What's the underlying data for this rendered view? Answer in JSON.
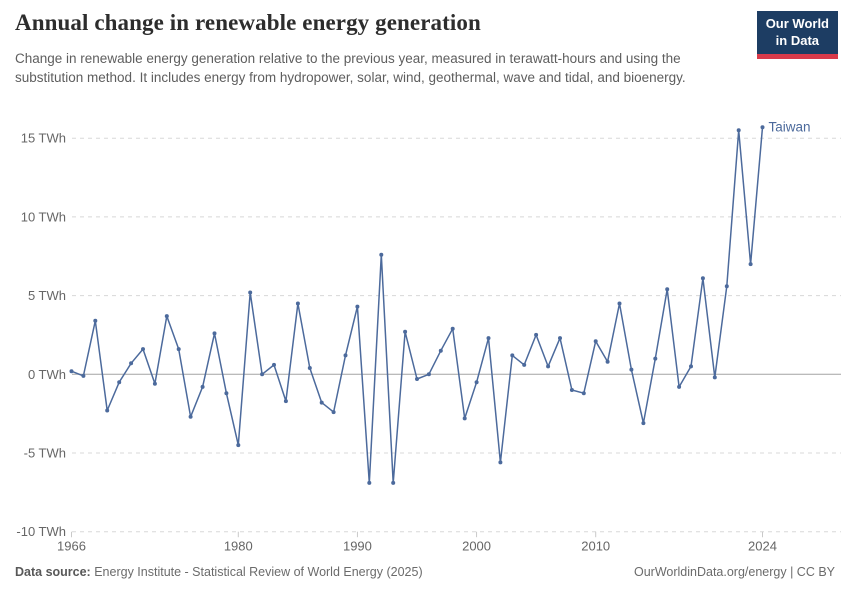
{
  "header": {
    "title": "Annual change in renewable energy generation",
    "subtitle": "Change in renewable energy generation relative to the previous year, measured in terawatt-hours and using the substitution method. It includes energy from hydropower, solar, wind, geothermal, wave and tidal, and bioenergy.",
    "logo": {
      "line1": "Our World",
      "line2": "in Data",
      "bg_color": "#1d3d63",
      "strip_color": "#d93a4a"
    }
  },
  "chart_data": {
    "type": "line",
    "entity_label": "Taiwan",
    "unit": "TWh",
    "line_color": "#4c6a9c",
    "grid": "horizontal-dashed",
    "legend_position": "end-of-line",
    "xlim": [
      1966,
      2024
    ],
    "ylim": [
      -10,
      15.7
    ],
    "yticks": [
      15,
      10,
      5,
      0,
      -5,
      -10
    ],
    "ytick_labels": [
      "15 TWh",
      "10 TWh",
      "5 TWh",
      "0 TWh",
      "-5 TWh",
      "-10 TWh"
    ],
    "xticks": [
      1966,
      1980,
      1990,
      2000,
      2010,
      2024
    ],
    "years": [
      1966,
      1967,
      1968,
      1969,
      1970,
      1971,
      1972,
      1973,
      1974,
      1975,
      1976,
      1977,
      1978,
      1979,
      1980,
      1981,
      1982,
      1983,
      1984,
      1985,
      1986,
      1987,
      1988,
      1989,
      1990,
      1991,
      1992,
      1993,
      1994,
      1995,
      1996,
      1997,
      1998,
      1999,
      2000,
      2001,
      2002,
      2003,
      2004,
      2005,
      2006,
      2007,
      2008,
      2009,
      2010,
      2011,
      2012,
      2013,
      2014,
      2015,
      2016,
      2017,
      2018,
      2019,
      2020,
      2021,
      2022,
      2023,
      2024
    ],
    "values": [
      0.2,
      -0.1,
      3.4,
      -2.3,
      -0.5,
      0.7,
      1.6,
      -0.6,
      3.7,
      1.6,
      -2.7,
      -0.8,
      2.6,
      -1.2,
      -4.5,
      5.2,
      0.0,
      0.6,
      -1.7,
      4.5,
      0.4,
      -1.8,
      -2.4,
      1.2,
      4.3,
      -6.9,
      7.6,
      -6.9,
      2.7,
      -0.3,
      0.0,
      1.5,
      2.9,
      -2.8,
      -0.5,
      2.3,
      -5.6,
      1.2,
      0.6,
      2.5,
      0.5,
      2.3,
      -1.0,
      -1.2,
      2.1,
      0.8,
      4.5,
      0.3,
      -3.1,
      1.0,
      5.4,
      -0.8,
      0.5,
      6.1,
      -0.2,
      5.6,
      15.5,
      7.0,
      15.7
    ],
    "colors": {
      "gridline": "#d8d8d8",
      "zero_line": "#a3a3a3",
      "tick": "#c9c9c9",
      "axis_text": "#666666"
    }
  },
  "footer": {
    "datasource_label": "Data source:",
    "datasource": "Energy Institute - Statistical Review of World Energy (2025)",
    "credit": "OurWorldinData.org/energy | CC BY"
  }
}
